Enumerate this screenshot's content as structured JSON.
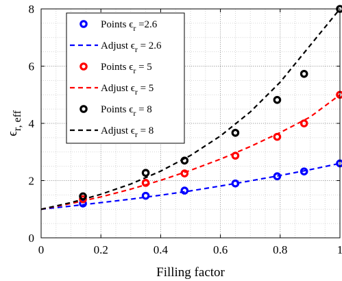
{
  "chart_data": {
    "type": "line",
    "xlabel": "Filling factor",
    "ylabel": "ϵr, eff",
    "xlim": [
      0,
      1
    ],
    "ylim": [
      0,
      8
    ],
    "x_ticks": [
      "0",
      "0.2",
      "0.4",
      "0.6",
      "0.8",
      "1"
    ],
    "y_ticks": [
      "0",
      "2",
      "4",
      "6",
      "8"
    ],
    "grid": true,
    "minor_grid": true,
    "legend_position": "top-left",
    "series": [
      {
        "name": "Points ϵr =2.6",
        "kind": "points",
        "color": "#0000ff",
        "x": [
          0.14,
          0.35,
          0.48,
          0.65,
          0.79,
          0.88,
          1.0
        ],
        "y": [
          1.2,
          1.47,
          1.65,
          1.9,
          2.15,
          2.32,
          2.6
        ]
      },
      {
        "name": "Adjust ϵr = 2.6",
        "kind": "curve",
        "color": "#0000ff",
        "x": [
          0,
          0.1,
          0.2,
          0.3,
          0.4,
          0.5,
          0.6,
          0.7,
          0.8,
          0.9,
          1.0
        ],
        "y": [
          1.0,
          1.11,
          1.23,
          1.35,
          1.49,
          1.64,
          1.81,
          1.99,
          2.18,
          2.38,
          2.6
        ]
      },
      {
        "name": "Points ϵr = 5",
        "kind": "points",
        "color": "#ff0000",
        "x": [
          0.14,
          0.35,
          0.48,
          0.65,
          0.79,
          0.88,
          1.0
        ],
        "y": [
          1.35,
          1.92,
          2.25,
          2.87,
          3.53,
          4.0,
          5.0
        ]
      },
      {
        "name": "Adjust ϵr = 5",
        "kind": "curve",
        "color": "#ff0000",
        "x": [
          0,
          0.1,
          0.2,
          0.3,
          0.4,
          0.5,
          0.6,
          0.7,
          0.8,
          0.9,
          1.0
        ],
        "y": [
          1.0,
          1.2,
          1.43,
          1.7,
          2.01,
          2.36,
          2.75,
          3.19,
          3.68,
          4.22,
          5.0
        ]
      },
      {
        "name": "Points ϵr = 8",
        "kind": "points",
        "color": "#000000",
        "x": [
          0.14,
          0.35,
          0.48,
          0.65,
          0.79,
          0.88,
          1.0
        ],
        "y": [
          1.45,
          2.27,
          2.7,
          3.67,
          4.82,
          5.73,
          8.0
        ]
      },
      {
        "name": "Adjust ϵr = 8",
        "kind": "curve",
        "color": "#000000",
        "x": [
          0,
          0.1,
          0.2,
          0.3,
          0.4,
          0.5,
          0.6,
          0.7,
          0.8,
          0.9,
          1.0
        ],
        "y": [
          1.0,
          1.23,
          1.52,
          1.88,
          2.33,
          2.88,
          3.56,
          4.4,
          5.44,
          6.72,
          8.0
        ]
      }
    ],
    "legend": [
      {
        "base": "Points ",
        "sub": "r",
        "tail": " =2.6"
      },
      {
        "base": "Adjust ",
        "sub": "r",
        "tail": " = 2.6"
      },
      {
        "base": "Points ",
        "sub": "r",
        "tail": " = 5"
      },
      {
        "base": "Adjust ",
        "sub": "r",
        "tail": " = 5"
      },
      {
        "base": "Points ",
        "sub": "r",
        "tail": " = 8"
      },
      {
        "base": "Adjust ",
        "sub": "r",
        "tail": " = 8"
      }
    ]
  }
}
